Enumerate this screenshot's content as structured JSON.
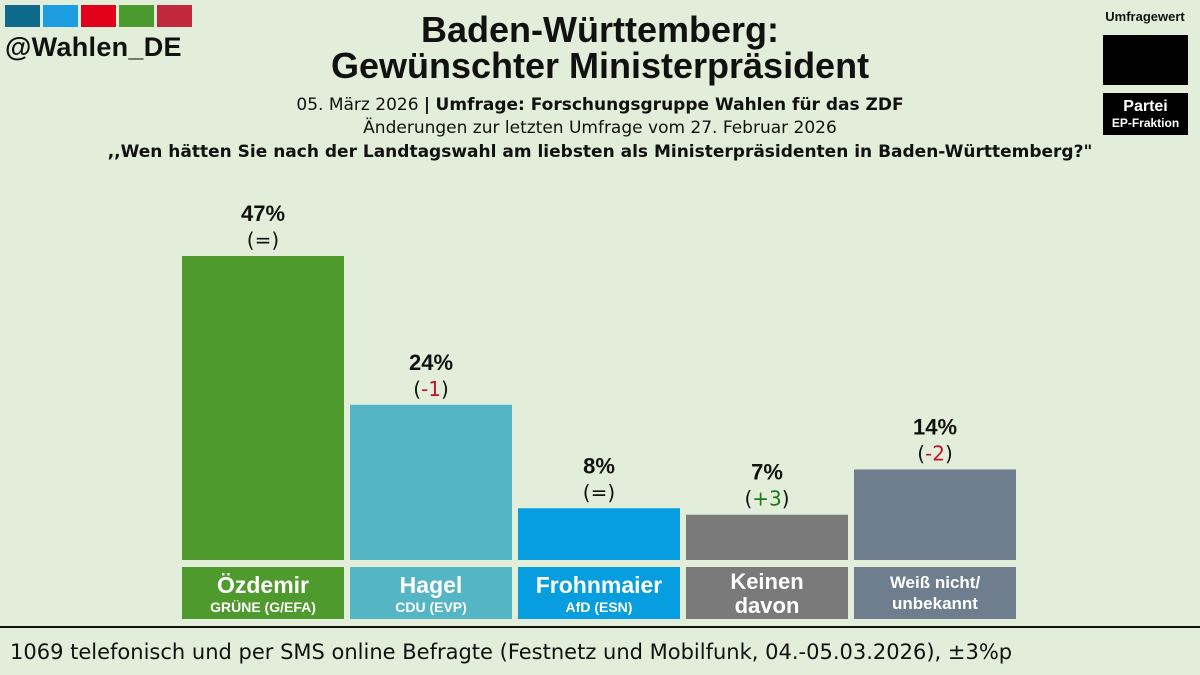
{
  "logo": {
    "handle": "@Wahlen_DE",
    "square_colors": [
      "#0e6a8c",
      "#1b9de0",
      "#e3001b",
      "#4a9a2d",
      "#c0283e"
    ]
  },
  "legend": {
    "title": "Umfragewert",
    "party_label": "Partei",
    "faction_label": "EP-Fraktion"
  },
  "header": {
    "title_line1": "Baden-Württemberg:",
    "title_line2": "Gewünschter Ministerpräsident",
    "date": "05. März 2026",
    "separator": "|",
    "source": "Umfrage: Forschungsgruppe Wahlen für das ZDF",
    "changes": "Änderungen zur letzten Umfrage vom 27. Februar 2026",
    "question": ",,Wen hätten Sie nach der Landtagswahl am liebsten als Ministerpräsidenten in Baden-Württemberg?\""
  },
  "chart_data": {
    "type": "bar",
    "ylim": [
      0,
      47
    ],
    "categories": [
      "Özdemir",
      "Hagel",
      "Frohnmaier",
      "Keinen davon",
      "Weiß nicht/ unbekannt"
    ],
    "values": [
      47,
      24,
      8,
      7,
      14
    ],
    "value_labels": [
      "47%",
      "24%",
      "8%",
      "7%",
      "14%"
    ],
    "change_labels": [
      "=",
      "-1",
      "=",
      "+3",
      "-2"
    ],
    "change_colors": [
      "#111111",
      "#c8102e",
      "#111111",
      "#1a7a1a",
      "#c8102e"
    ],
    "name_lines": [
      [
        "Özdemir"
      ],
      [
        "Hagel"
      ],
      [
        "Frohnmaier"
      ],
      [
        "Keinen",
        "davon"
      ],
      [
        "Weiß nicht/",
        "unbekannt"
      ]
    ],
    "party_labels": [
      "GRÜNE (G/EFA)",
      "CDU (EVP)",
      "AfD (ESN)",
      "",
      ""
    ],
    "colors": [
      "#4e9a2c",
      "#54b6c4",
      "#079ee0",
      "#7a7a7a",
      "#6f7e8e"
    ]
  },
  "footer": {
    "text": "1069 telefonisch und per SMS online Befragte (Festnetz und Mobilfunk, 04.-05.03.2026), ±3%p"
  }
}
